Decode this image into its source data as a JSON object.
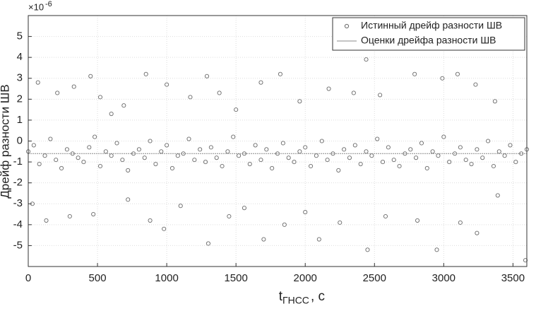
{
  "chart_data": {
    "type": "scatter",
    "ylabel": "Дрейф разности ШВ",
    "xlabel": {
      "main": "t",
      "sub": "ГНСС",
      "suffix": ", с"
    },
    "exponent": {
      "base": "×10",
      "power": "-6"
    },
    "xlim": [
      0,
      3600
    ],
    "ylim": [
      -6,
      6
    ],
    "xticks": [
      0,
      500,
      1000,
      1500,
      2000,
      2500,
      3000,
      3500
    ],
    "yticks": [
      -5,
      -4,
      -3,
      -2,
      -1,
      0,
      1,
      2,
      3,
      4,
      5
    ],
    "grid": true,
    "legend": "top-right",
    "series": [
      {
        "name": "Истинный дрейф разности ШВ",
        "color": "#6a6a6a",
        "marker": "circle",
        "x": [
          0,
          40,
          80,
          120,
          160,
          200,
          240,
          280,
          320,
          360,
          400,
          440,
          480,
          520,
          560,
          600,
          640,
          680,
          720,
          760,
          800,
          840,
          880,
          920,
          960,
          1000,
          1040,
          1080,
          1120,
          1160,
          1200,
          1240,
          1280,
          1320,
          1360,
          1400,
          1440,
          1480,
          1520,
          1560,
          1600,
          1640,
          1680,
          1720,
          1760,
          1800,
          1840,
          1880,
          1920,
          1960,
          2000,
          2040,
          2080,
          2120,
          2160,
          2200,
          2240,
          2280,
          2320,
          2360,
          2400,
          2440,
          2480,
          2520,
          2560,
          2600,
          2640,
          2680,
          2720,
          2760,
          2800,
          2840,
          2880,
          2920,
          2960,
          3000,
          3040,
          3080,
          3120,
          3160,
          3200,
          3240,
          3280,
          3320,
          3360,
          3400,
          3440,
          3480,
          3520,
          3560,
          3600,
          70,
          30,
          130,
          210,
          300,
          330,
          450,
          470,
          520,
          600,
          690,
          720,
          850,
          880,
          980,
          1000,
          1100,
          1170,
          1290,
          1300,
          1380,
          1450,
          1500,
          1560,
          1680,
          1700,
          1820,
          1850,
          1960,
          2000,
          2100,
          2170,
          2250,
          2350,
          2440,
          2450,
          2540,
          2580,
          2790,
          2810,
          2950,
          2990,
          3100,
          3120,
          3230,
          3240,
          3370,
          3390,
          3590
        ],
        "values": [
          -0.5,
          -0.2,
          -1.1,
          -0.7,
          0.1,
          -0.9,
          -1.3,
          -0.4,
          -0.6,
          -0.8,
          -1.0,
          -0.3,
          0.2,
          -1.2,
          -0.5,
          -0.7,
          -0.1,
          -0.9,
          -1.4,
          -0.6,
          -0.4,
          -0.8,
          0.0,
          -1.1,
          -0.5,
          -0.2,
          -1.3,
          -0.7,
          -0.6,
          0.1,
          -0.9,
          -0.4,
          -1.0,
          -0.3,
          -0.8,
          -1.2,
          -0.5,
          0.2,
          -0.7,
          -0.6,
          -1.1,
          -0.2,
          -0.9,
          -0.4,
          -1.3,
          -0.6,
          -0.1,
          -0.8,
          -1.0,
          -0.5,
          -0.3,
          -1.2,
          -0.7,
          0.0,
          -0.9,
          -0.6,
          -1.4,
          -0.4,
          -0.8,
          -0.2,
          -1.1,
          -0.5,
          -0.7,
          0.1,
          -1.0,
          -0.3,
          -0.9,
          -1.2,
          -0.6,
          -0.4,
          -0.8,
          -0.1,
          -1.3,
          -0.5,
          -0.7,
          0.2,
          -1.0,
          -0.6,
          -0.3,
          -0.9,
          -1.1,
          -0.4,
          -0.8,
          0.0,
          -1.2,
          -0.5,
          -0.7,
          -0.2,
          -1.0,
          -0.6,
          -0.4,
          2.8,
          -3,
          -3.8,
          2.3,
          -3.6,
          2.6,
          3.1,
          -3.5,
          2.1,
          1.3,
          1.7,
          -2.8,
          3.2,
          -3.8,
          -4.2,
          2.7,
          -3.1,
          2.1,
          3.1,
          -4.9,
          2.3,
          -3.6,
          1.5,
          -3.2,
          2.8,
          -4.7,
          3.2,
          -4,
          1.9,
          -3.4,
          -4.7,
          2.5,
          -3.9,
          2.3,
          3.9,
          -5.2,
          2.2,
          -3.6,
          3.2,
          -3.8,
          -5.2,
          3,
          3.2,
          -3.9,
          2.7,
          -4.4,
          1.9,
          -2.6,
          -5.7
        ]
      },
      {
        "name": "Оценки дрейфа разности ШВ",
        "color": "#8a8a8a",
        "marker": "line",
        "x": [
          0,
          3600
        ],
        "values": [
          -0.6,
          -0.6
        ]
      }
    ]
  }
}
